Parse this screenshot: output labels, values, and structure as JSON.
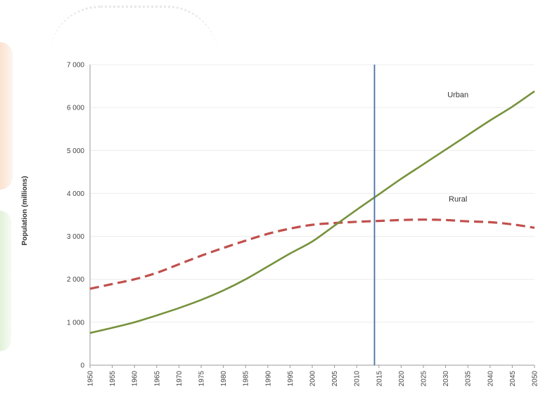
{
  "chart_data": {
    "type": "line",
    "title": "",
    "xlabel": "",
    "ylabel": "Population (millions)",
    "xlim": [
      1950,
      2050
    ],
    "ylim": [
      0,
      7000
    ],
    "x": [
      1950,
      1955,
      1960,
      1965,
      1970,
      1975,
      1980,
      1985,
      1990,
      1995,
      2000,
      2005,
      2010,
      2015,
      2020,
      2025,
      2030,
      2035,
      2040,
      2045,
      2050
    ],
    "x_tick_labels": [
      "1950",
      "1955",
      "1960",
      "1965",
      "1970",
      "1975",
      "1980",
      "1985",
      "1990",
      "1995",
      "2000",
      "2005",
      "2010",
      "2015",
      "2020",
      "2025",
      "2030",
      "2035",
      "2040",
      "2045",
      "2050"
    ],
    "y_ticks": [
      0,
      1000,
      2000,
      3000,
      4000,
      5000,
      6000,
      7000
    ],
    "y_tick_labels": [
      "0",
      "1 000",
      "2 000",
      "3 000",
      "4 000",
      "5 000",
      "6 000",
      "7 000"
    ],
    "series": [
      {
        "name": "Urban",
        "color": "#76923c",
        "dash": "solid",
        "values": [
          750,
          870,
          1000,
          1160,
          1330,
          1520,
          1740,
          2000,
          2300,
          2600,
          2880,
          3250,
          3620,
          3980,
          4340,
          4680,
          5020,
          5360,
          5700,
          6020,
          6380
        ]
      },
      {
        "name": "Rural",
        "color": "#c0504d",
        "dash": "dashed",
        "values": [
          1780,
          1890,
          2000,
          2150,
          2350,
          2550,
          2730,
          2900,
          3060,
          3180,
          3270,
          3310,
          3340,
          3360,
          3380,
          3390,
          3380,
          3350,
          3330,
          3280,
          3200
        ]
      }
    ],
    "reference_lines": [
      {
        "axis": "x",
        "value": 2014,
        "color": "#4a6fa5"
      }
    ],
    "grid": true,
    "legend": "none (series labeled inline)"
  }
}
